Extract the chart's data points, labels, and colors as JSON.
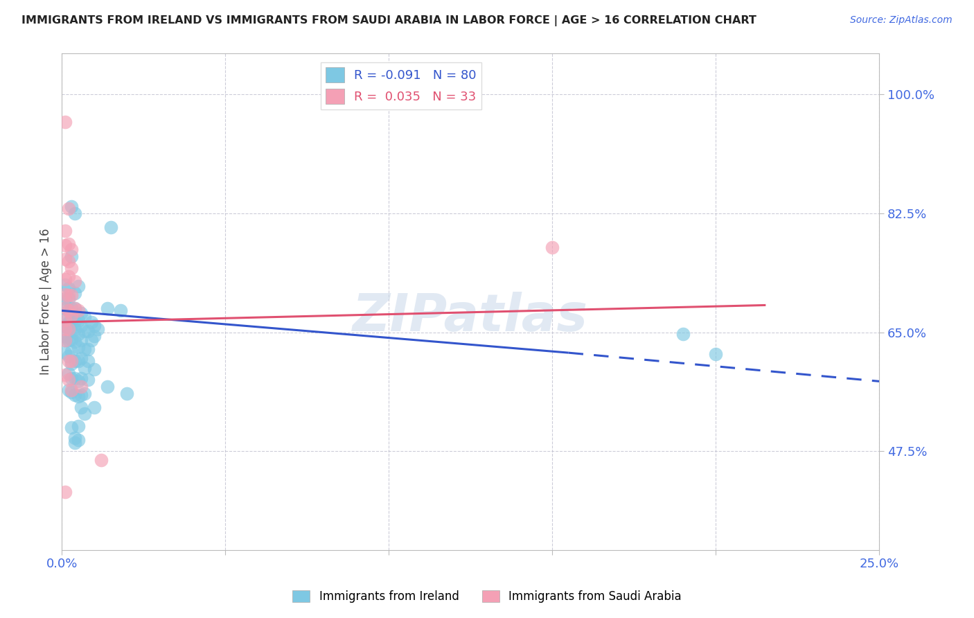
{
  "title": "IMMIGRANTS FROM IRELAND VS IMMIGRANTS FROM SAUDI ARABIA IN LABOR FORCE | AGE > 16 CORRELATION CHART",
  "source": "Source: ZipAtlas.com",
  "ylabel": "In Labor Force | Age > 16",
  "y_ticks": [
    0.475,
    0.65,
    0.825,
    1.0
  ],
  "y_tick_labels": [
    "47.5%",
    "65.0%",
    "82.5%",
    "100.0%"
  ],
  "xlim": [
    0.0,
    0.25
  ],
  "ylim": [
    0.33,
    1.06
  ],
  "color_ireland": "#7EC8E3",
  "color_saudi": "#F4A0B5",
  "color_ireland_line": "#3355CC",
  "color_saudi_line": "#E05070",
  "color_axis_labels": "#4169E1",
  "watermark": "ZIPatlas",
  "ireland_R": -0.091,
  "ireland_N": 80,
  "saudi_R": 0.035,
  "saudi_N": 33,
  "ireland_trend_x0": 0.0,
  "ireland_trend_y0": 0.682,
  "ireland_trend_x1_solid": 0.155,
  "ireland_trend_y1_solid": 0.62,
  "ireland_trend_x1_dashed": 0.25,
  "ireland_trend_y1_dashed": 0.578,
  "saudi_trend_x0": 0.0,
  "saudi_trend_y0": 0.665,
  "saudi_trend_x1": 0.215,
  "saudi_trend_y1": 0.69,
  "ireland_points": [
    [
      0.001,
      0.685
    ],
    [
      0.001,
      0.7
    ],
    [
      0.001,
      0.72
    ],
    [
      0.001,
      0.66
    ],
    [
      0.001,
      0.67
    ],
    [
      0.001,
      0.645
    ],
    [
      0.001,
      0.62
    ],
    [
      0.001,
      0.638
    ],
    [
      0.002,
      0.682
    ],
    [
      0.002,
      0.665
    ],
    [
      0.002,
      0.655
    ],
    [
      0.002,
      0.638
    ],
    [
      0.002,
      0.615
    ],
    [
      0.002,
      0.59
    ],
    [
      0.002,
      0.565
    ],
    [
      0.002,
      0.7
    ],
    [
      0.002,
      0.715
    ],
    [
      0.003,
      0.835
    ],
    [
      0.003,
      0.762
    ],
    [
      0.003,
      0.685
    ],
    [
      0.003,
      0.668
    ],
    [
      0.003,
      0.652
    ],
    [
      0.003,
      0.64
    ],
    [
      0.003,
      0.622
    ],
    [
      0.003,
      0.604
    ],
    [
      0.003,
      0.582
    ],
    [
      0.003,
      0.562
    ],
    [
      0.003,
      0.51
    ],
    [
      0.003,
      0.675
    ],
    [
      0.004,
      0.825
    ],
    [
      0.004,
      0.685
    ],
    [
      0.004,
      0.666
    ],
    [
      0.004,
      0.655
    ],
    [
      0.004,
      0.636
    ],
    [
      0.004,
      0.608
    ],
    [
      0.004,
      0.582
    ],
    [
      0.004,
      0.558
    ],
    [
      0.004,
      0.495
    ],
    [
      0.004,
      0.488
    ],
    [
      0.004,
      0.708
    ],
    [
      0.005,
      0.718
    ],
    [
      0.005,
      0.668
    ],
    [
      0.005,
      0.648
    ],
    [
      0.005,
      0.628
    ],
    [
      0.005,
      0.608
    ],
    [
      0.005,
      0.578
    ],
    [
      0.005,
      0.556
    ],
    [
      0.005,
      0.512
    ],
    [
      0.005,
      0.492
    ],
    [
      0.006,
      0.678
    ],
    [
      0.006,
      0.66
    ],
    [
      0.006,
      0.638
    ],
    [
      0.006,
      0.612
    ],
    [
      0.006,
      0.582
    ],
    [
      0.006,
      0.558
    ],
    [
      0.006,
      0.54
    ],
    [
      0.007,
      0.672
    ],
    [
      0.007,
      0.652
    ],
    [
      0.007,
      0.625
    ],
    [
      0.007,
      0.598
    ],
    [
      0.007,
      0.56
    ],
    [
      0.007,
      0.53
    ],
    [
      0.008,
      0.652
    ],
    [
      0.008,
      0.625
    ],
    [
      0.008,
      0.608
    ],
    [
      0.008,
      0.58
    ],
    [
      0.009,
      0.665
    ],
    [
      0.009,
      0.638
    ],
    [
      0.01,
      0.66
    ],
    [
      0.01,
      0.645
    ],
    [
      0.01,
      0.596
    ],
    [
      0.01,
      0.54
    ],
    [
      0.011,
      0.655
    ],
    [
      0.014,
      0.685
    ],
    [
      0.014,
      0.57
    ],
    [
      0.015,
      0.805
    ],
    [
      0.018,
      0.682
    ],
    [
      0.02,
      0.56
    ],
    [
      0.19,
      0.648
    ],
    [
      0.2,
      0.618
    ]
  ],
  "saudi_points": [
    [
      0.001,
      0.96
    ],
    [
      0.001,
      0.8
    ],
    [
      0.001,
      0.778
    ],
    [
      0.001,
      0.758
    ],
    [
      0.001,
      0.728
    ],
    [
      0.001,
      0.706
    ],
    [
      0.001,
      0.686
    ],
    [
      0.001,
      0.668
    ],
    [
      0.001,
      0.655
    ],
    [
      0.001,
      0.638
    ],
    [
      0.001,
      0.588
    ],
    [
      0.001,
      0.415
    ],
    [
      0.002,
      0.832
    ],
    [
      0.002,
      0.78
    ],
    [
      0.002,
      0.755
    ],
    [
      0.002,
      0.732
    ],
    [
      0.002,
      0.705
    ],
    [
      0.002,
      0.682
    ],
    [
      0.002,
      0.655
    ],
    [
      0.002,
      0.608
    ],
    [
      0.002,
      0.58
    ],
    [
      0.003,
      0.772
    ],
    [
      0.003,
      0.745
    ],
    [
      0.003,
      0.705
    ],
    [
      0.003,
      0.675
    ],
    [
      0.003,
      0.608
    ],
    [
      0.003,
      0.565
    ],
    [
      0.004,
      0.725
    ],
    [
      0.004,
      0.685
    ],
    [
      0.005,
      0.682
    ],
    [
      0.006,
      0.57
    ],
    [
      0.15,
      0.775
    ],
    [
      0.012,
      0.462
    ]
  ]
}
